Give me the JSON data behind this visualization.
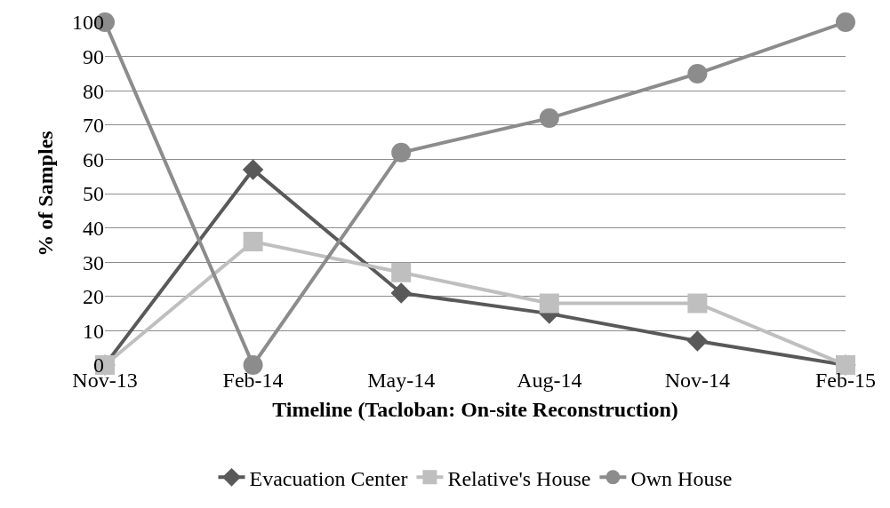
{
  "chart_data": {
    "type": "line",
    "xlabel": "Timeline (Tacloban: On-site Reconstruction)",
    "ylabel": "% of Samples",
    "categories": [
      "Nov-13",
      "Feb-14",
      "May-14",
      "Aug-14",
      "Nov-14",
      "Feb-15"
    ],
    "series": [
      {
        "name": "Evacuation Center",
        "color": "#595959",
        "marker": "diamond",
        "values": [
          0,
          57,
          21,
          15,
          7,
          0
        ]
      },
      {
        "name": "Relative's House",
        "color": "#bfbfbf",
        "marker": "square",
        "values": [
          0,
          36,
          27,
          18,
          18,
          0
        ]
      },
      {
        "name": "Own House",
        "color": "#8c8c8c",
        "marker": "circle",
        "values": [
          100,
          0,
          62,
          72,
          85,
          100
        ]
      }
    ],
    "ylim": [
      0,
      100
    ],
    "yticks": [
      0,
      10,
      20,
      30,
      40,
      50,
      60,
      70,
      80,
      90,
      100
    ],
    "grid": "y",
    "legend": "bottom",
    "line_style": "solid"
  }
}
